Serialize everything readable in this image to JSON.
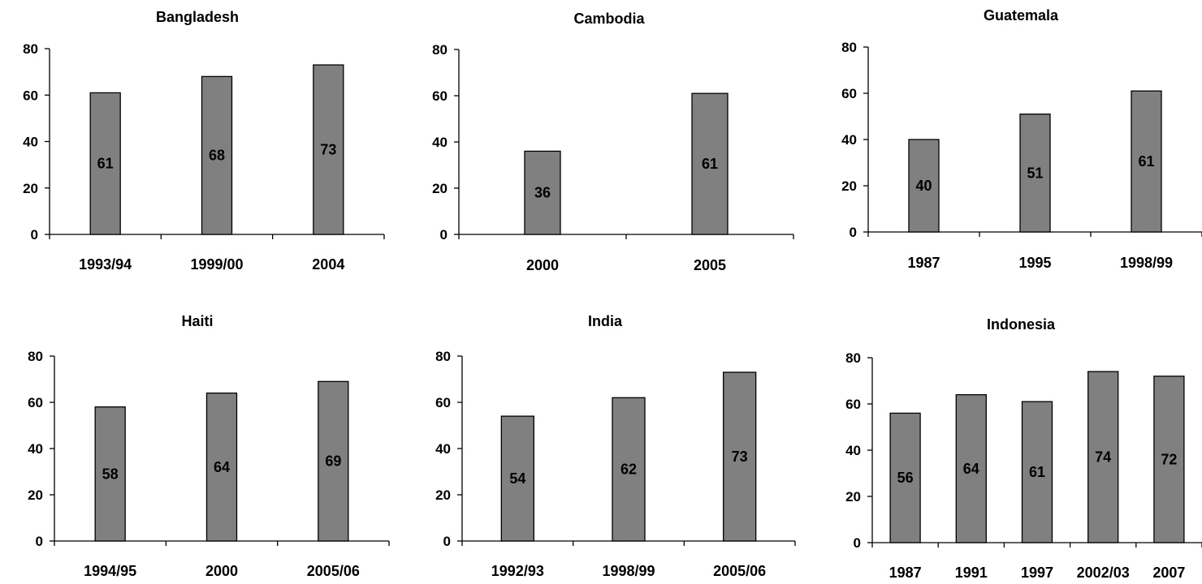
{
  "colors": {
    "bar_fill": "#808080",
    "bar_stroke": "#000000",
    "axis": "#000000",
    "text": "#000000",
    "background": "#ffffff"
  },
  "chart_data": [
    {
      "type": "bar",
      "title": "Bangladesh",
      "categories": [
        "1993/94",
        "1999/00",
        "2004"
      ],
      "values": [
        61,
        68,
        73
      ],
      "ylim": [
        0,
        80
      ],
      "yticks": [
        0,
        20,
        40,
        60,
        80
      ],
      "grid": false,
      "legend": "none"
    },
    {
      "type": "bar",
      "title": "Cambodia",
      "categories": [
        "2000",
        "2005"
      ],
      "values": [
        36,
        61
      ],
      "ylim": [
        0,
        80
      ],
      "yticks": [
        0,
        20,
        40,
        60,
        80
      ],
      "grid": false,
      "legend": "none"
    },
    {
      "type": "bar",
      "title": "Guatemala",
      "categories": [
        "1987",
        "1995",
        "1998/99"
      ],
      "values": [
        40,
        51,
        61
      ],
      "ylim": [
        0,
        80
      ],
      "yticks": [
        0,
        20,
        40,
        60,
        80
      ],
      "grid": false,
      "legend": "none"
    },
    {
      "type": "bar",
      "title": "Haiti",
      "categories": [
        "1994/95",
        "2000",
        "2005/06"
      ],
      "values": [
        58,
        64,
        69
      ],
      "ylim": [
        0,
        80
      ],
      "yticks": [
        0,
        20,
        40,
        60,
        80
      ],
      "grid": false,
      "legend": "none"
    },
    {
      "type": "bar",
      "title": "India",
      "categories": [
        "1992/93",
        "1998/99",
        "2005/06"
      ],
      "values": [
        54,
        62,
        73
      ],
      "ylim": [
        0,
        80
      ],
      "yticks": [
        0,
        20,
        40,
        60,
        80
      ],
      "grid": false,
      "legend": "none"
    },
    {
      "type": "bar",
      "title": "Indonesia",
      "categories": [
        "1987",
        "1991",
        "1997",
        "2002/03",
        "2007"
      ],
      "values": [
        56,
        64,
        61,
        74,
        72
      ],
      "ylim": [
        0,
        80
      ],
      "yticks": [
        0,
        20,
        40,
        60,
        80
      ],
      "grid": false,
      "legend": "none"
    }
  ]
}
